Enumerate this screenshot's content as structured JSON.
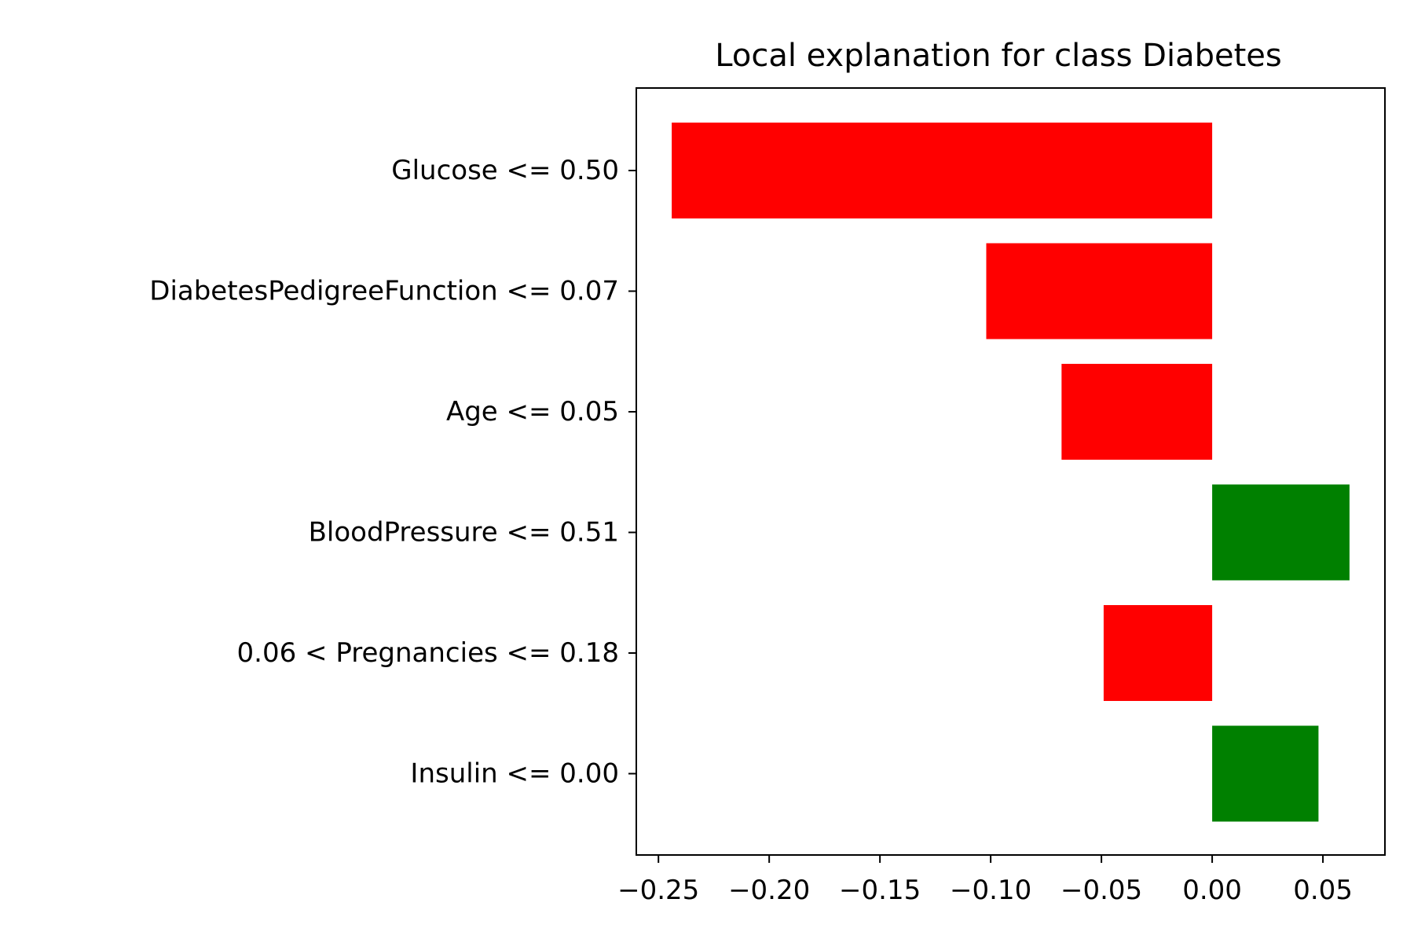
{
  "chart_data": {
    "type": "bar",
    "orientation": "horizontal",
    "title": "Local explanation for class Diabetes",
    "xlabel": "",
    "ylabel": "",
    "xlim": [
      -0.26,
      0.078
    ],
    "xticks": [
      -0.25,
      -0.2,
      -0.15,
      -0.1,
      -0.05,
      0.0,
      0.05
    ],
    "xtick_labels": [
      "−0.25",
      "−0.20",
      "−0.15",
      "−0.10",
      "−0.05",
      "0.00",
      "0.05"
    ],
    "categories": [
      "Glucose <= 0.50",
      "DiabetesPedigreeFunction <= 0.07",
      "Age <= 0.05",
      "BloodPressure <= 0.51",
      "0.06 < Pregnancies <= 0.18",
      "Insulin <= 0.00"
    ],
    "values": [
      -0.244,
      -0.102,
      -0.068,
      0.062,
      -0.049,
      0.048
    ],
    "colors": {
      "negative": "#ff0000",
      "positive": "#008000"
    },
    "grid": false,
    "legend": "none"
  }
}
